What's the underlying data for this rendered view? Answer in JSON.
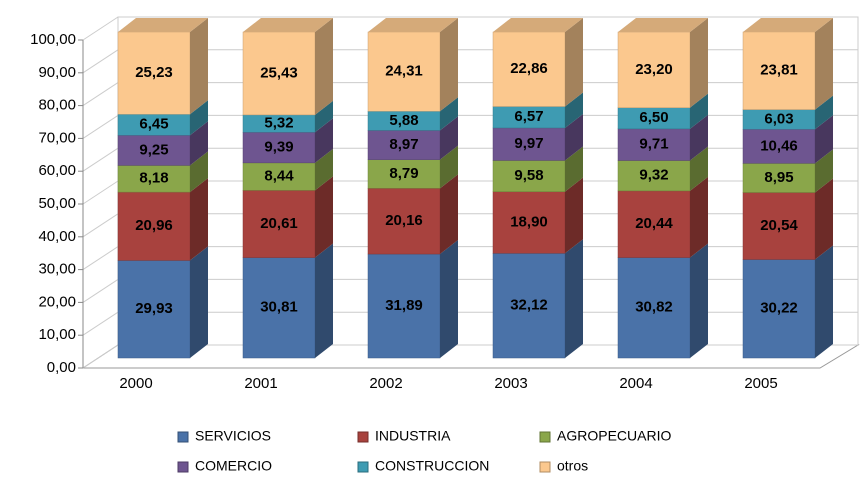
{
  "chart_data": {
    "type": "bar",
    "stacked": true,
    "categories": [
      "2000",
      "2001",
      "2002",
      "2003",
      "2004",
      "2005"
    ],
    "series": [
      {
        "name": "SERVICIOS",
        "color": "#4a72a8",
        "values": [
          29.93,
          30.81,
          31.89,
          32.12,
          30.82,
          30.22
        ],
        "value_labels": [
          "29,93",
          "30,81",
          "31,89",
          "32,12",
          "30,82",
          "30,22"
        ]
      },
      {
        "name": "INDUSTRIA",
        "color": "#a8423e",
        "values": [
          20.96,
          20.61,
          20.16,
          18.9,
          20.44,
          20.54
        ],
        "value_labels": [
          "20,96",
          "20,61",
          "20,16",
          "18,90",
          "20,44",
          "20,54"
        ]
      },
      {
        "name": "AGROPECUARIO",
        "color": "#8aa64a",
        "values": [
          8.18,
          8.44,
          8.79,
          9.58,
          9.32,
          8.95
        ],
        "value_labels": [
          "8,18",
          "8,44",
          "8,79",
          "9,58",
          "9,32",
          "8,95"
        ]
      },
      {
        "name": "COMERCIO",
        "color": "#6e5590",
        "values": [
          9.25,
          9.39,
          8.97,
          9.97,
          9.71,
          10.46
        ],
        "value_labels": [
          "9,25",
          "9,39",
          "8,97",
          "9,97",
          "9,71",
          "10,46"
        ]
      },
      {
        "name": "CONSTRUCCION",
        "color": "#3e9bb2",
        "values": [
          6.45,
          5.32,
          5.88,
          6.57,
          6.5,
          6.03
        ],
        "value_labels": [
          "6,45",
          "5,32",
          "5,88",
          "6,57",
          "6,50",
          "6,03"
        ]
      },
      {
        "name": "otros",
        "color": "#fbc88e",
        "values": [
          25.23,
          25.43,
          24.31,
          22.86,
          23.2,
          23.81
        ],
        "value_labels": [
          "25,23",
          "25,43",
          "24,31",
          "22,86",
          "23,20",
          "23,81"
        ]
      }
    ],
    "ylim": [
      0,
      100
    ],
    "yticks": [
      {
        "value": 0,
        "label": "0,00"
      },
      {
        "value": 10,
        "label": "10,00"
      },
      {
        "value": 20,
        "label": "20,00"
      },
      {
        "value": 30,
        "label": "30,00"
      },
      {
        "value": 40,
        "label": "40,00"
      },
      {
        "value": 50,
        "label": "50,00"
      },
      {
        "value": 60,
        "label": "60,00"
      },
      {
        "value": 70,
        "label": "70,00"
      },
      {
        "value": 80,
        "label": "80,00"
      },
      {
        "value": 90,
        "label": "90,00"
      },
      {
        "value": 100,
        "label": "100,00"
      }
    ],
    "grid": true,
    "legend": "bottom"
  }
}
